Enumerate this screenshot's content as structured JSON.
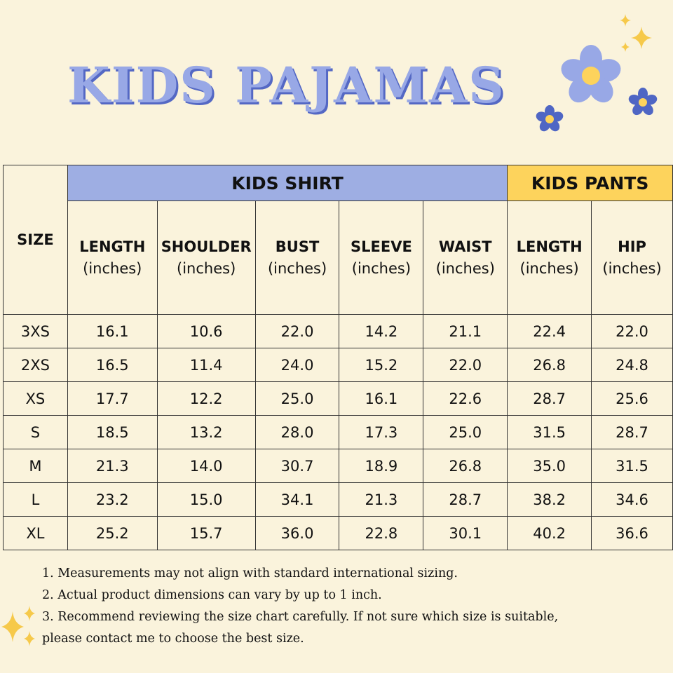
{
  "title": "KIDS PAJAMAS",
  "colors": {
    "background": "#faf3dc",
    "shirt_header": "#9eaee3",
    "pants_header": "#fdd35c",
    "title": "#98a8e6",
    "title_shadow": "#5468c4"
  },
  "table": {
    "size_header": "SIZE",
    "groups": [
      "KIDS SHIRT",
      "KIDS PANTS"
    ],
    "columns": [
      {
        "name": "LENGTH",
        "unit": "(inches)"
      },
      {
        "name": "SHOULDER",
        "unit": "(inches)"
      },
      {
        "name": "BUST",
        "unit": "(inches)"
      },
      {
        "name": "SLEEVE",
        "unit": "(inches)"
      },
      {
        "name": "WAIST",
        "unit": "(inches)"
      },
      {
        "name": "LENGTH",
        "unit": "(inches)"
      },
      {
        "name": "HIP",
        "unit": "(inches)"
      }
    ],
    "rows": [
      [
        "3XS",
        "16.1",
        "10.6",
        "22.0",
        "14.2",
        "21.1",
        "22.4",
        "22.0"
      ],
      [
        "2XS",
        "16.5",
        "11.4",
        "24.0",
        "15.2",
        "22.0",
        "26.8",
        "24.8"
      ],
      [
        "XS",
        "17.7",
        "12.2",
        "25.0",
        "16.1",
        "22.6",
        "28.7",
        "25.6"
      ],
      [
        "S",
        "18.5",
        "13.2",
        "28.0",
        "17.3",
        "25.0",
        "31.5",
        "28.7"
      ],
      [
        "M",
        "21.3",
        "14.0",
        "30.7",
        "18.9",
        "26.8",
        "35.0",
        "31.5"
      ],
      [
        "L",
        "23.2",
        "15.0",
        "34.1",
        "21.3",
        "28.7",
        "38.2",
        "34.6"
      ],
      [
        "XL",
        "25.2",
        "15.7",
        "36.0",
        "22.8",
        "30.1",
        "40.2",
        "36.6"
      ]
    ]
  },
  "notes": [
    "1. Measurements may not align with standard international sizing.",
    "2. Actual product dimensions can vary by up to 1 inch.",
    "3. Recommend reviewing the size chart carefully. If not sure which size is suitable,",
    "please contact me to choose the best size."
  ],
  "decorations": [
    "flower-icon",
    "sparkle-icon"
  ]
}
